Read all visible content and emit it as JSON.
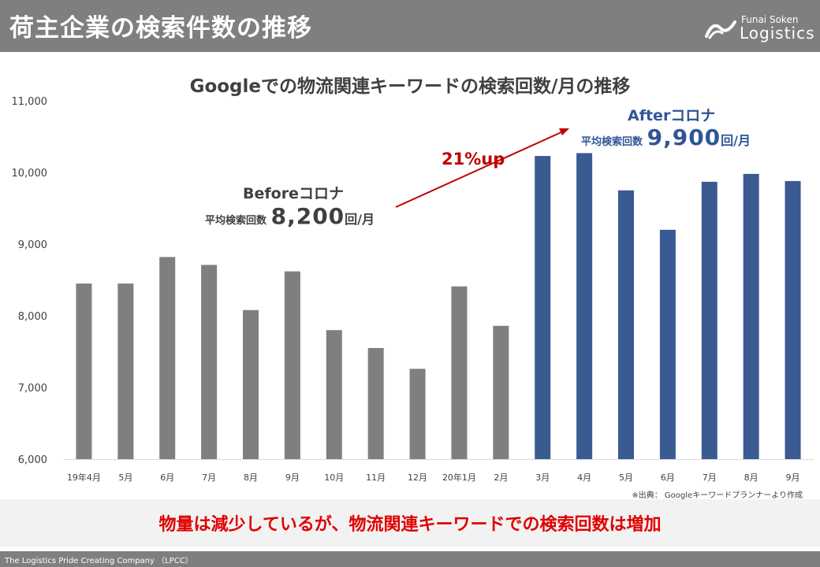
{
  "header": {
    "title": "荷主企業の検索件数の推移",
    "brand_top": "Funai Soken",
    "brand_main": "Logistics"
  },
  "chart_title": "Googleでの物流関連キーワードの検索回数/月の推移",
  "annotations": {
    "before": {
      "title": "Beforeコロナ",
      "label": "平均検索回数",
      "value": "8,200",
      "unit": "回/月"
    },
    "after": {
      "title": "Afterコロナ",
      "label": "平均検索回数",
      "value": "9,900",
      "unit": "回/月"
    },
    "up": "21%up"
  },
  "source": "※出典： Googleキーワードプランナーより作成",
  "conclusion": "物量は減少しているが、物流関連キーワードでの検索回数は増加",
  "footer": "The Logistics Pride Creating Company （LPCC）",
  "colors": {
    "header_bg": "#7f7f7f",
    "before_bar": "#7f7f7f",
    "after_bar": "#3a5a92",
    "accent_red": "#c00000",
    "after_text": "#2f5597"
  },
  "chart_data": {
    "type": "bar",
    "title": "Googleでの物流関連キーワードの検索回数/月の推移",
    "categories": [
      "19年4月",
      "5月",
      "6月",
      "7月",
      "8月",
      "9月",
      "10月",
      "11月",
      "12月",
      "20年1月",
      "2月",
      "3月",
      "4月",
      "5月",
      "6月",
      "7月",
      "8月",
      "9月"
    ],
    "values": [
      8450,
      8450,
      8820,
      8710,
      8080,
      8620,
      7800,
      7550,
      7260,
      8410,
      7860,
      10230,
      10270,
      9750,
      9200,
      9870,
      9980,
      9880
    ],
    "groups": [
      "before",
      "before",
      "before",
      "before",
      "before",
      "before",
      "before",
      "before",
      "before",
      "before",
      "before",
      "after",
      "after",
      "after",
      "after",
      "after",
      "after",
      "after"
    ],
    "ylim": [
      6000,
      11000
    ],
    "yticks": [
      6000,
      7000,
      8000,
      9000,
      10000,
      11000
    ],
    "ytick_labels": [
      "6,000",
      "7,000",
      "8,000",
      "9,000",
      "10,000",
      "11,000"
    ],
    "grid": false,
    "legend": "none"
  }
}
